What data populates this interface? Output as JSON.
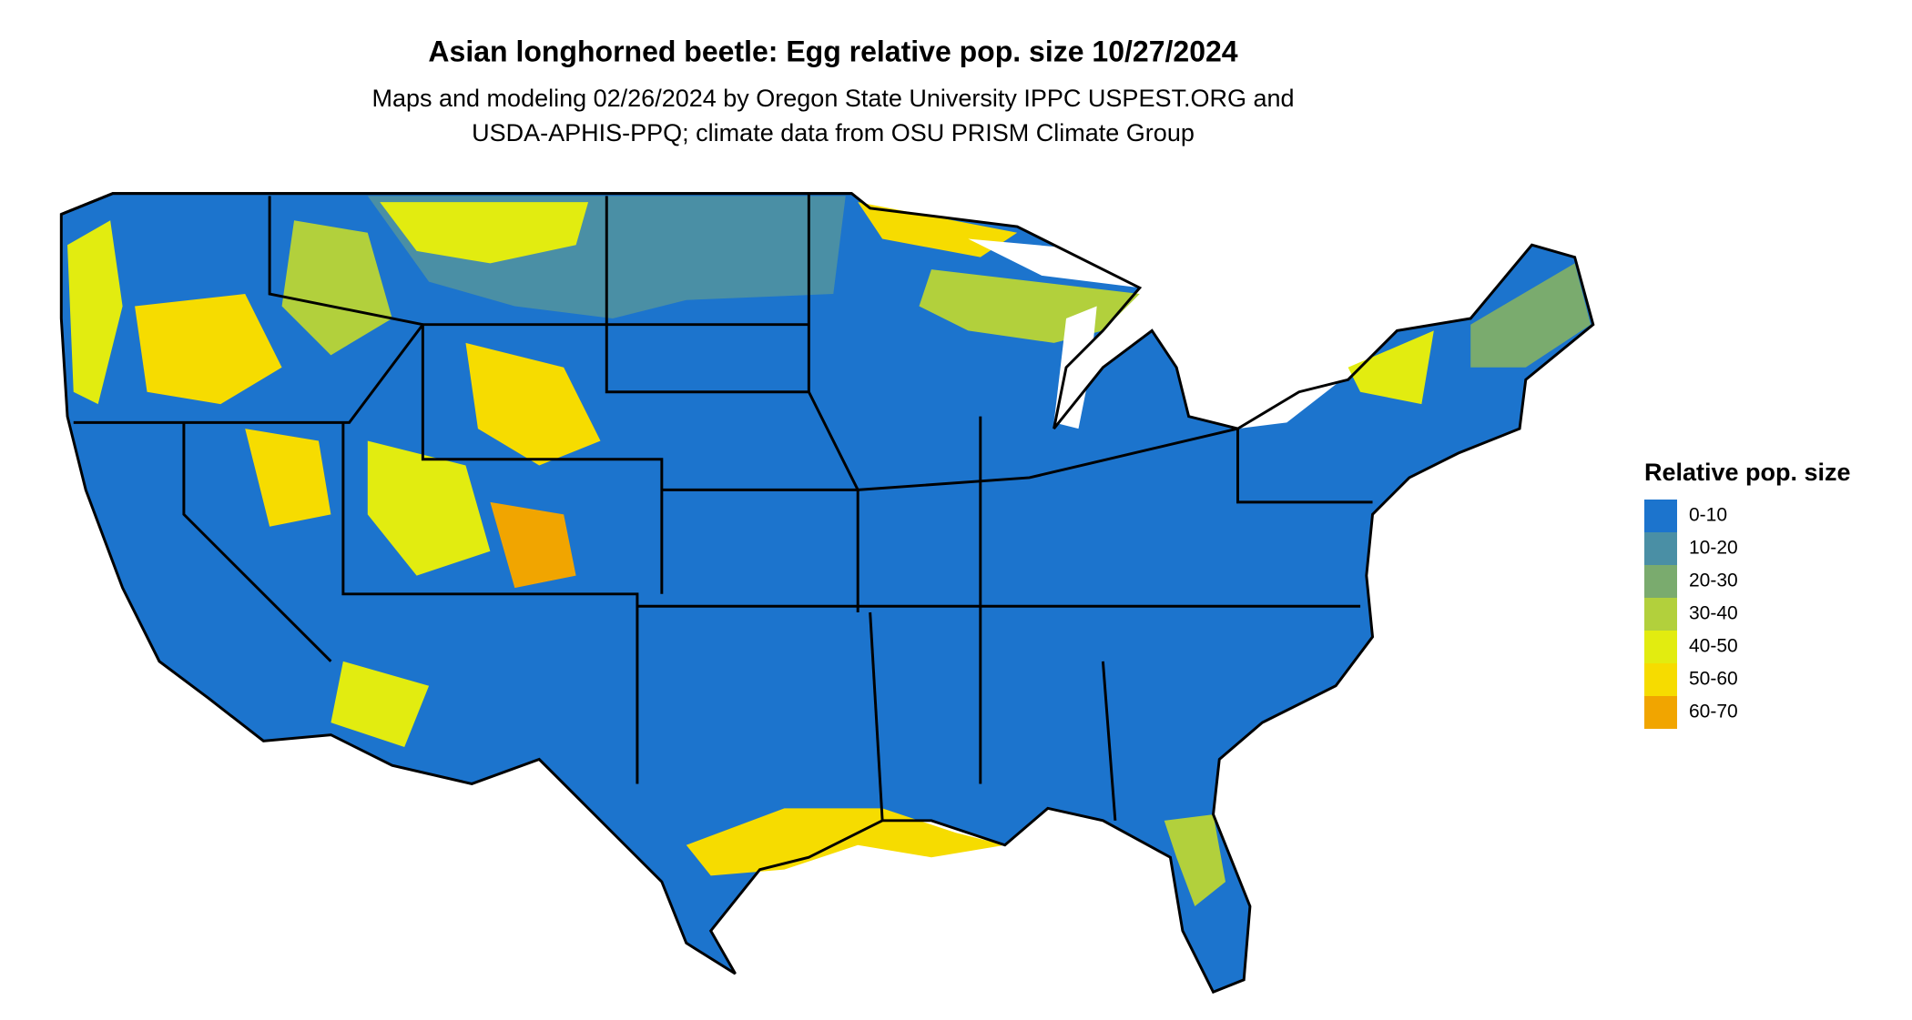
{
  "title": "Asian longhorned beetle: Egg relative pop. size 10/27/2024",
  "subtitle": [
    "Maps and modeling 02/26/2024 by Oregon State University IPPC USPEST.ORG and",
    "USDA-APHIS-PPQ; climate data from OSU PRISM Climate Group"
  ],
  "legend": {
    "title": "Relative pop. size",
    "items": [
      {
        "label": "0-10",
        "color": "#1c74cd"
      },
      {
        "label": "10-20",
        "color": "#4a8fa5"
      },
      {
        "label": "20-30",
        "color": "#7aab6e"
      },
      {
        "label": "30-40",
        "color": "#b2d03c"
      },
      {
        "label": "40-50",
        "color": "#e2ec10"
      },
      {
        "label": "50-60",
        "color": "#f6dc00"
      },
      {
        "label": "60-70",
        "color": "#f1a500"
      }
    ]
  }
}
